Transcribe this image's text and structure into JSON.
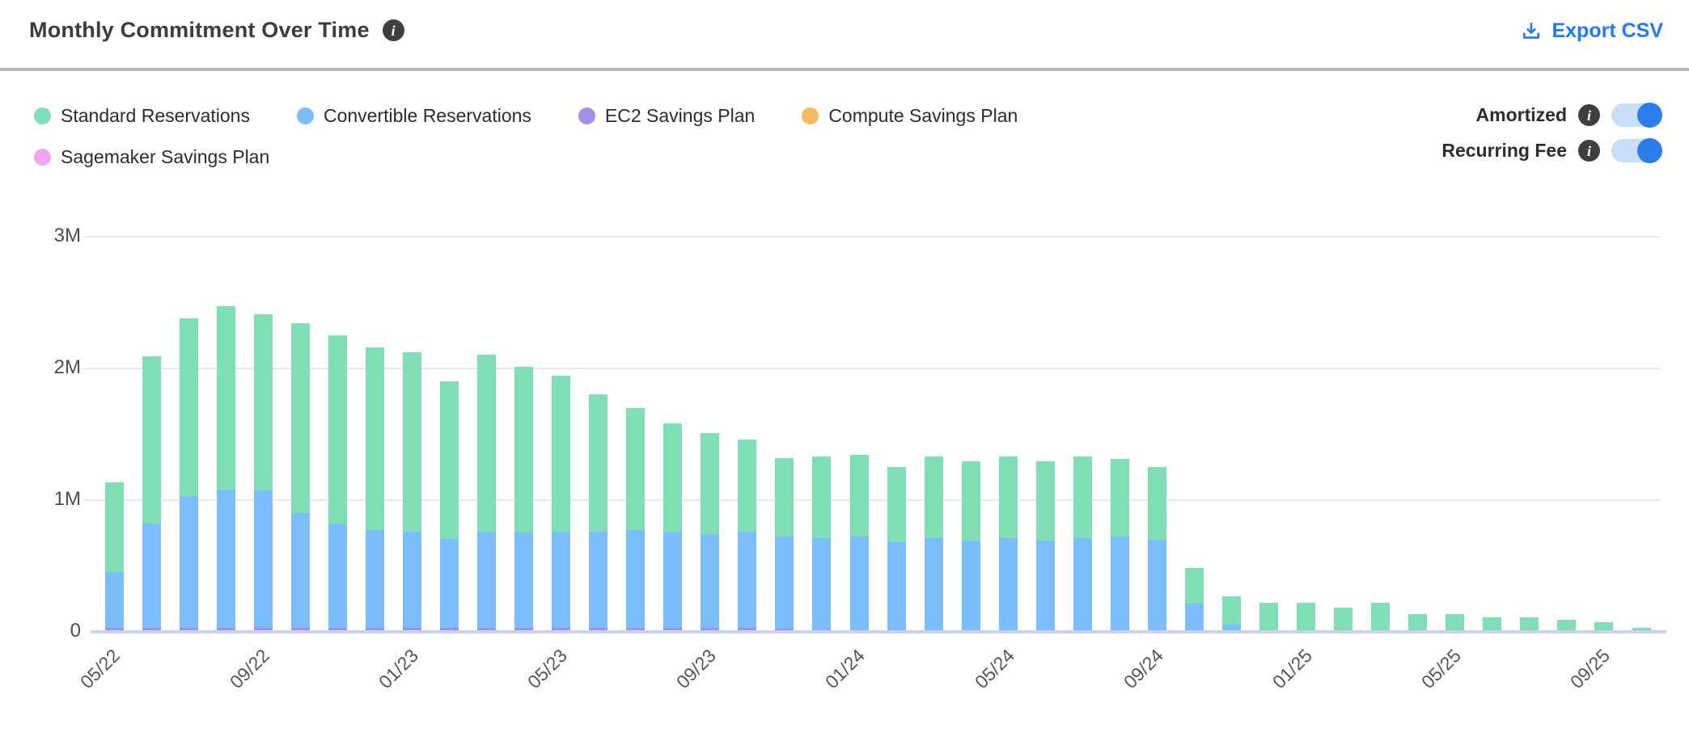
{
  "header": {
    "title": "Monthly Commitment Over Time",
    "info_glyph": "i",
    "export_label": "Export CSV"
  },
  "toggles": [
    {
      "label": "Amortized",
      "state": "on"
    },
    {
      "label": "Recurring Fee",
      "state": "on"
    }
  ],
  "colors": {
    "accent_blue": "#2478F2",
    "toggle_track": "#c9def9",
    "toggle_knob": "#2b7de9",
    "gridline": "#e9e9e9",
    "zero_axis": "#c9d3e9"
  },
  "chart_data": {
    "type": "bar",
    "stacked": true,
    "unit": "M",
    "ylabel": "",
    "xlabel": "",
    "ylim_m": [
      0,
      3
    ],
    "y_ticks": [
      "0",
      "1M",
      "2M",
      "3M"
    ],
    "x_tick_every": 4,
    "x": [
      "05/22",
      "06/22",
      "07/22",
      "08/22",
      "09/22",
      "10/22",
      "11/22",
      "12/22",
      "01/23",
      "02/23",
      "03/23",
      "04/23",
      "05/23",
      "06/23",
      "07/23",
      "08/23",
      "09/23",
      "10/23",
      "11/23",
      "12/23",
      "01/24",
      "02/24",
      "03/24",
      "04/24",
      "05/24",
      "06/24",
      "07/24",
      "08/24",
      "09/24",
      "10/24",
      "11/24",
      "12/24",
      "01/25",
      "02/25",
      "03/25",
      "04/25",
      "05/25",
      "06/25",
      "07/25",
      "08/25",
      "09/25",
      "10/25"
    ],
    "series": [
      {
        "name": "Standard Reservations",
        "color": "#80dfb4",
        "values_m": [
          0.68,
          1.27,
          1.35,
          1.39,
          1.34,
          1.44,
          1.43,
          1.39,
          1.36,
          1.2,
          1.34,
          1.26,
          1.18,
          1.04,
          0.93,
          0.82,
          0.77,
          0.7,
          0.6,
          0.62,
          0.62,
          0.57,
          0.62,
          0.6,
          0.62,
          0.6,
          0.62,
          0.59,
          0.55,
          0.27,
          0.22,
          0.21,
          0.21,
          0.17,
          0.21,
          0.12,
          0.12,
          0.1,
          0.1,
          0.08,
          0.06,
          0.02
        ]
      },
      {
        "name": "Convertible Reservations",
        "color": "#7cbefb",
        "values_m": [
          0.42,
          0.79,
          1.0,
          1.05,
          1.04,
          0.87,
          0.79,
          0.74,
          0.73,
          0.67,
          0.73,
          0.72,
          0.73,
          0.73,
          0.74,
          0.73,
          0.71,
          0.73,
          0.7,
          0.7,
          0.71,
          0.67,
          0.7,
          0.68,
          0.7,
          0.68,
          0.7,
          0.71,
          0.69,
          0.2,
          0.04,
          0,
          0,
          0,
          0,
          0,
          0,
          0,
          0,
          0,
          0,
          0
        ]
      },
      {
        "name": "EC2 Savings Plan",
        "color": "#a78fe9",
        "values_m": [
          0.02,
          0.02,
          0.02,
          0.02,
          0.02,
          0.02,
          0.02,
          0.02,
          0.02,
          0.02,
          0.02,
          0.02,
          0.02,
          0.02,
          0.02,
          0.02,
          0.02,
          0.02,
          0.01,
          0,
          0,
          0,
          0,
          0,
          0,
          0,
          0,
          0,
          0,
          0,
          0,
          0,
          0,
          0,
          0,
          0,
          0,
          0,
          0,
          0,
          0,
          0
        ]
      },
      {
        "name": "Compute Savings Plan",
        "color": "#f6ba60",
        "values_m": [
          0,
          0,
          0,
          0,
          0,
          0,
          0,
          0,
          0,
          0,
          0,
          0,
          0,
          0,
          0,
          0,
          0,
          0,
          0,
          0,
          0,
          0,
          0,
          0,
          0,
          0,
          0,
          0,
          0,
          0,
          0,
          0,
          0,
          0,
          0,
          0,
          0,
          0,
          0,
          0,
          0,
          0
        ]
      },
      {
        "name": "Sagemaker Savings Plan",
        "color": "#f0a6ec",
        "values_m": [
          0,
          0,
          0,
          0,
          0,
          0,
          0,
          0,
          0,
          0,
          0,
          0,
          0,
          0,
          0,
          0,
          0,
          0,
          0,
          0,
          0,
          0,
          0,
          0,
          0,
          0,
          0,
          0,
          0,
          0,
          0,
          0,
          0,
          0,
          0,
          0,
          0,
          0,
          0,
          0,
          0,
          0
        ]
      }
    ]
  }
}
